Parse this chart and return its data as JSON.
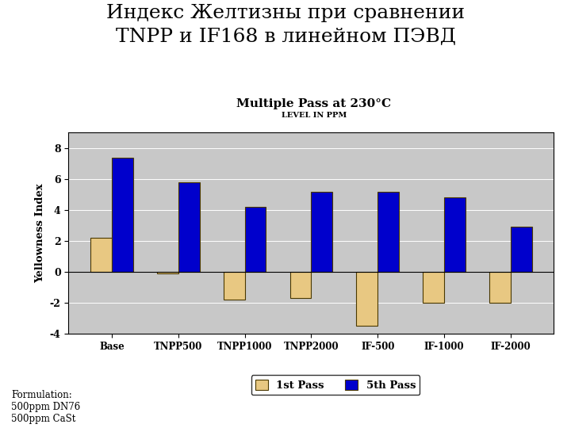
{
  "title_ru": "Индекс Желтизны при сравнении\nTNPP и IF168 в линейном ПЭВД",
  "subtitle": "Multiple Pass at 230°C",
  "subtitle2": "LEVEL IN PPM",
  "ylabel": "Yellowness Index",
  "categories": [
    "Base",
    "TNPP500",
    "TNPP1000",
    "TNPP2000",
    "IF-500",
    "IF-1000",
    "IF-2000"
  ],
  "first_pass": [
    2.2,
    -0.1,
    -1.8,
    -1.7,
    -3.5,
    -2.0,
    -2.0
  ],
  "fifth_pass": [
    7.4,
    5.8,
    4.2,
    5.2,
    5.2,
    4.8,
    2.9
  ],
  "color_first": "#E8C882",
  "color_fifth": "#0000CC",
  "bar_edge": "#4A3800",
  "ylim": [
    -4,
    9
  ],
  "yticks": [
    -4,
    -2,
    0,
    2,
    4,
    6,
    8
  ],
  "legend_labels": [
    "1st Pass",
    "5th Pass"
  ],
  "footnote": "Formulation:\n500ppm DN76\n500ppm CaSt",
  "bg_color": "#C8C8C8",
  "plot_bg": "#FFFFFF",
  "title_fontsize": 18,
  "subtitle_fontsize": 11,
  "subtitle2_fontsize": 7
}
